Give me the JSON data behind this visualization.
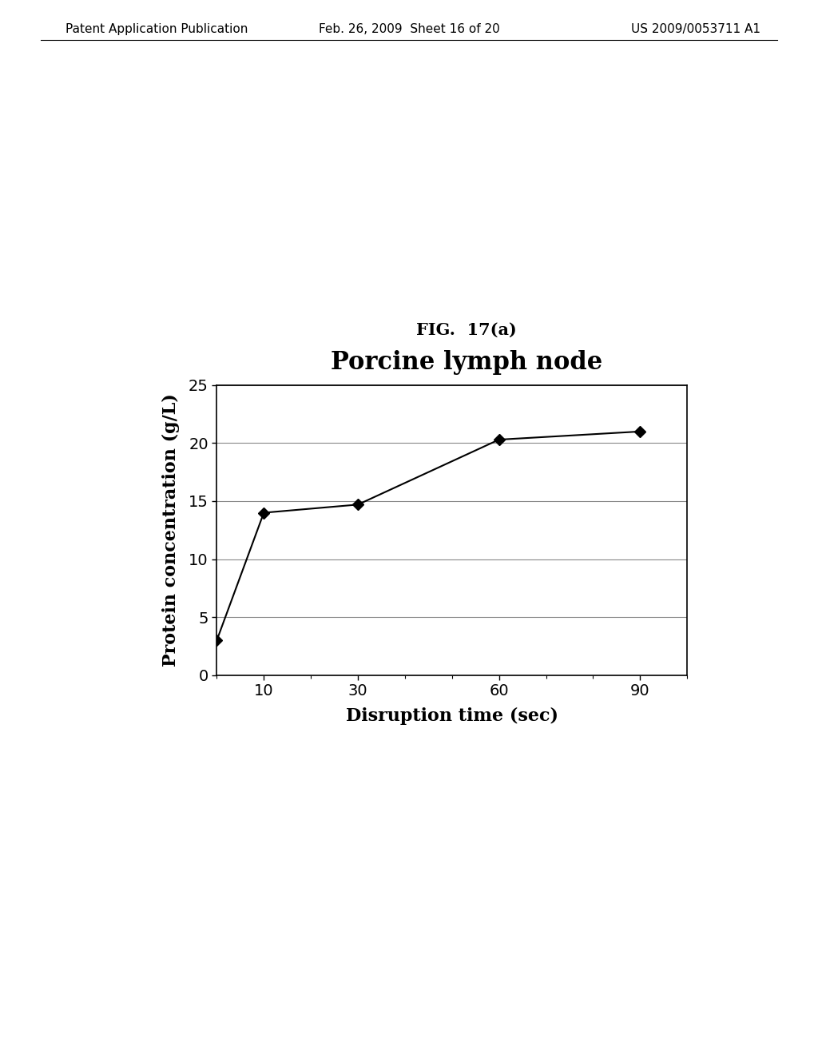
{
  "fig_label": "FIG.  17(a)",
  "chart_title": "Porcine lymph node",
  "xlabel": "Disruption time (sec)",
  "ylabel": "Protein concentration (g/L)",
  "x_data": [
    0,
    10,
    30,
    60,
    90
  ],
  "y_data": [
    3,
    14,
    14.7,
    20.3,
    21.0
  ],
  "xlim": [
    0,
    100
  ],
  "ylim": [
    0,
    25
  ],
  "xticks": [
    10,
    30,
    60,
    90
  ],
  "yticks": [
    0,
    5,
    10,
    15,
    20,
    25
  ],
  "marker": "D",
  "line_color": "#000000",
  "marker_color": "#000000",
  "marker_size": 7,
  "line_width": 1.5,
  "background_color": "#ffffff",
  "header_left": "Patent Application Publication",
  "header_mid": "Feb. 26, 2009  Sheet 16 of 20",
  "header_right": "US 2009/0053711 A1",
  "fig_label_fontsize": 15,
  "chart_title_fontsize": 22,
  "axis_label_fontsize": 16,
  "tick_label_fontsize": 14,
  "header_fontsize": 11
}
